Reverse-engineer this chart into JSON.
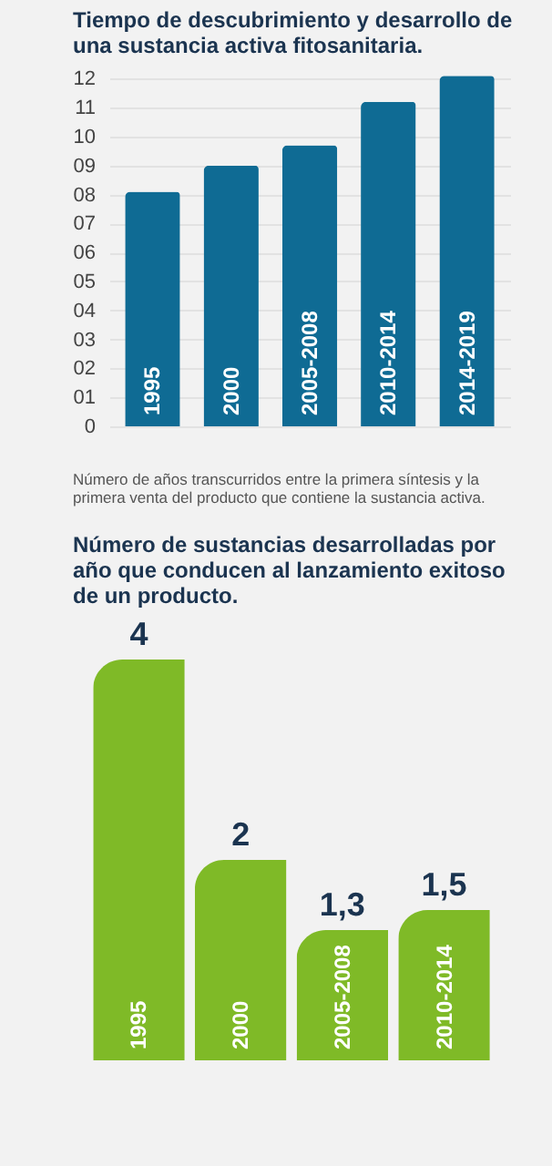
{
  "chart_data": [
    {
      "type": "bar",
      "title": "Tiempo de descubrimiento y desarrollo de una sustancia activa fitosanitaria.",
      "categories": [
        "1995",
        "2000",
        "2005-2008",
        "2010-2014",
        "2014-2019"
      ],
      "values": [
        8.1,
        9.0,
        9.7,
        11.2,
        12.1
      ],
      "color": "#0f6b94",
      "ylim": [
        0,
        12.2
      ],
      "yticks": [
        0,
        {
          "value": 1,
          "label": "01"
        },
        {
          "value": 2,
          "label": "02"
        },
        {
          "value": 3,
          "label": "03"
        },
        {
          "value": 4,
          "label": "04"
        },
        {
          "value": 5,
          "label": "05"
        },
        {
          "value": 6,
          "label": "06"
        },
        {
          "value": 7,
          "label": "07"
        },
        {
          "value": 8,
          "label": "08"
        },
        {
          "value": 9,
          "label": "09"
        },
        10,
        11,
        12
      ],
      "grid": "y",
      "annotations": [
        "Número de años transcurridos entre la primera síntesis y la primera venta del producto que contiene la sustancia activa."
      ]
    },
    {
      "type": "bar",
      "title": "Número de sustancias desarrolladas por año que conducen al lanzamiento exitoso de un producto.",
      "categories": [
        "1995",
        "2000",
        "2005-2008",
        "2010-2014"
      ],
      "values": [
        4,
        2,
        1.3,
        1.5
      ],
      "color": "#7fba27",
      "value_labels": [
        "4",
        "2",
        "1,3",
        "1,5"
      ]
    }
  ]
}
